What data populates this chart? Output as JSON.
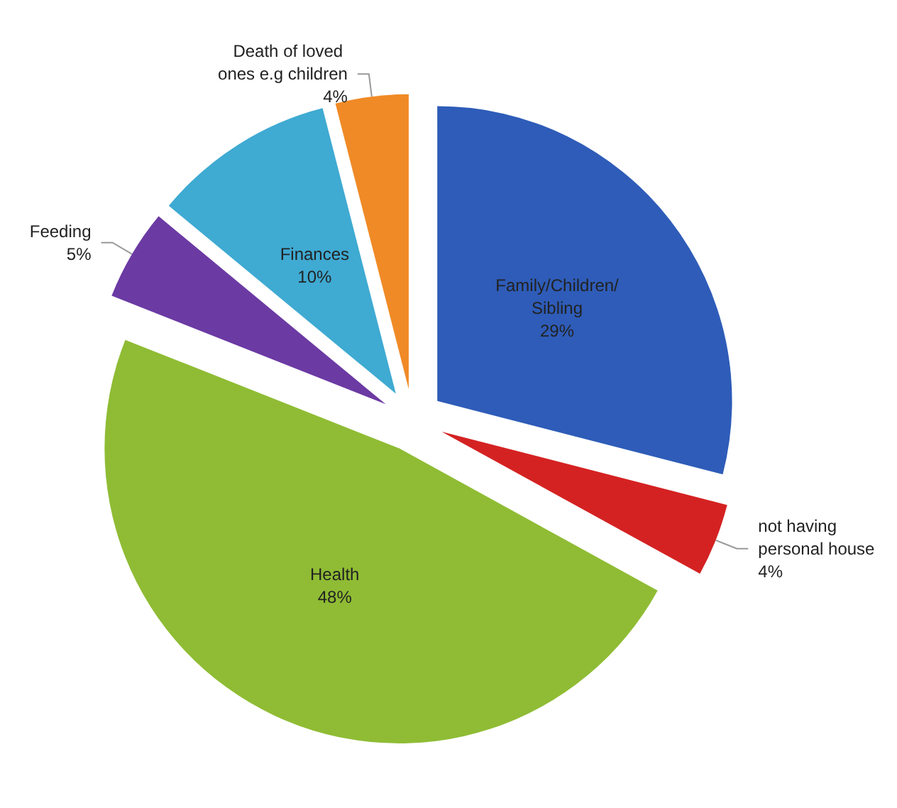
{
  "chart_data": {
    "type": "pie",
    "categories": [
      "Family/Children/Sibling",
      "not having personal house",
      "Health",
      "Feeding",
      "Finances",
      "Death of loved ones e.g children"
    ],
    "values": [
      29,
      4,
      48,
      5,
      10,
      4
    ],
    "value_labels": [
      "29%",
      "4%",
      "48%",
      "5%",
      "10%",
      "4%"
    ],
    "colors": [
      "#2e5cb8",
      "#d42222",
      "#8fbc34",
      "#6b3aa3",
      "#3faad2",
      "#f08a26"
    ],
    "legend": false
  }
}
